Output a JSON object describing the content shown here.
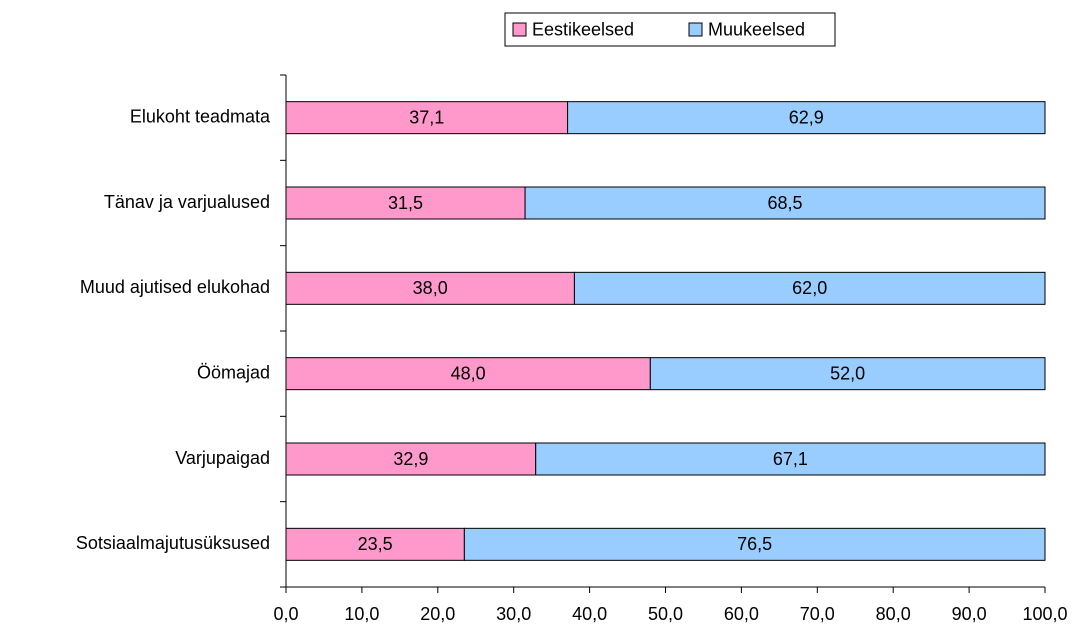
{
  "chart_data": {
    "type": "bar",
    "orientation": "horizontal",
    "stacked": true,
    "categories": [
      "Elukoht teadmata",
      "Tänav ja varjualused",
      "Muud ajutised elukohad",
      "Öömajad",
      "Varjupaigad",
      "Sotsiaalmajutusüksused"
    ],
    "series": [
      {
        "name": "Eestikeelsed",
        "color": "#ff99cc",
        "values": [
          37.1,
          31.5,
          38.0,
          48.0,
          32.9,
          23.5
        ],
        "labels": [
          "37,1",
          "31,5",
          "38,0",
          "48,0",
          "32,9",
          "23,5"
        ]
      },
      {
        "name": "Muukeelsed",
        "color": "#99ccff",
        "values": [
          62.9,
          68.5,
          62.0,
          52.0,
          67.1,
          76.5
        ],
        "labels": [
          "62,9",
          "68,5",
          "62,0",
          "52,0",
          "67,1",
          "76,5"
        ]
      }
    ],
    "xlim": [
      0,
      100
    ],
    "xticks": [
      0,
      10,
      20,
      30,
      40,
      50,
      60,
      70,
      80,
      90,
      100
    ],
    "xtick_labels": [
      "0,0",
      "10,0",
      "20,0",
      "30,0",
      "40,0",
      "50,0",
      "60,0",
      "70,0",
      "80,0",
      "90,0",
      "100,0"
    ],
    "grid": false,
    "legend_position": "top-center"
  }
}
